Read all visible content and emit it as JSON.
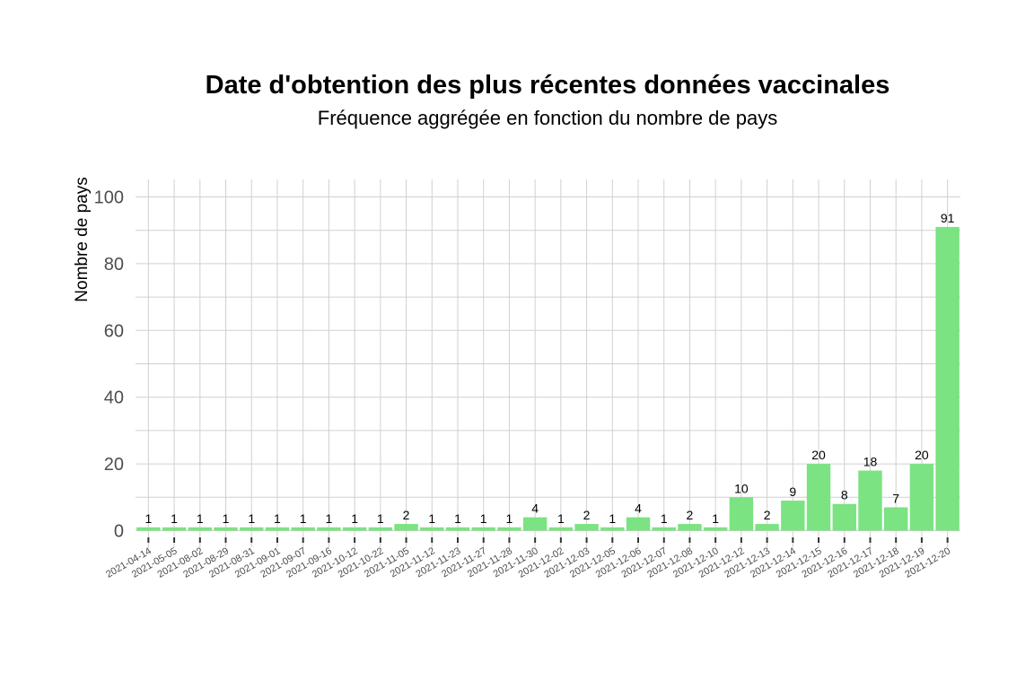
{
  "chart_data": {
    "type": "bar",
    "title": "Date d'obtention des plus récentes données vaccinales",
    "subtitle": "Fréquence aggrégée en fonction du nombre de pays",
    "xlabel": "",
    "ylabel": "Nombre de pays",
    "ylim": [
      0,
      105
    ],
    "yticks": [
      0,
      20,
      40,
      60,
      80,
      100
    ],
    "grid": true,
    "bar_color": "#7be382",
    "categories": [
      "2021-04-14",
      "2021-05-05",
      "2021-08-02",
      "2021-08-29",
      "2021-08-31",
      "2021-09-01",
      "2021-09-07",
      "2021-09-16",
      "2021-10-12",
      "2021-10-22",
      "2021-11-05",
      "2021-11-12",
      "2021-11-23",
      "2021-11-27",
      "2021-11-28",
      "2021-11-30",
      "2021-12-02",
      "2021-12-03",
      "2021-12-05",
      "2021-12-06",
      "2021-12-07",
      "2021-12-08",
      "2021-12-10",
      "2021-12-12",
      "2021-12-13",
      "2021-12-14",
      "2021-12-15",
      "2021-12-16",
      "2021-12-17",
      "2021-12-18",
      "2021-12-19",
      "2021-12-20"
    ],
    "values": [
      1,
      1,
      1,
      1,
      1,
      1,
      1,
      1,
      1,
      1,
      2,
      1,
      1,
      1,
      1,
      4,
      1,
      2,
      1,
      4,
      1,
      2,
      1,
      10,
      2,
      9,
      20,
      8,
      18,
      7,
      20,
      91
    ]
  }
}
